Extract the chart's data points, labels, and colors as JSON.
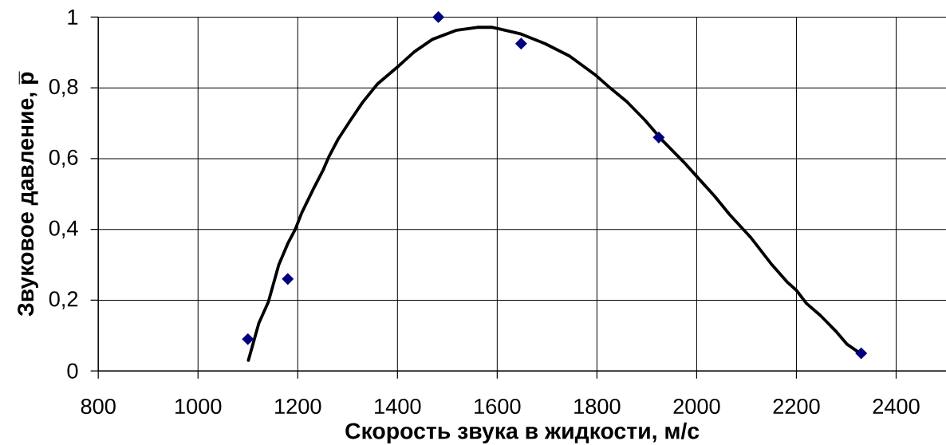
{
  "chart_data": {
    "type": "scatter",
    "xlabel": "Скорость звука в жидкости, м/с",
    "ylabel": "Звуковое давление, p̅",
    "xlim": [
      800,
      2500
    ],
    "xticks": [
      800,
      1000,
      1200,
      1400,
      1600,
      1800,
      2000,
      2200,
      2400
    ],
    "ylim": [
      0,
      1
    ],
    "yticks": [
      0,
      {
        "value": 0.2,
        "label": "0,2"
      },
      {
        "value": 0.4,
        "label": "0,4"
      },
      {
        "value": 0.6,
        "label": "0,6"
      },
      {
        "value": 0.8,
        "label": "0,8"
      },
      1
    ],
    "grid": true,
    "series": [
      {
        "type": "line",
        "color": "#000000",
        "line_style": "solid",
        "x": [
          1101,
          1122,
          1141,
          1162,
          1180,
          1195,
          1208,
          1232,
          1251,
          1263,
          1281,
          1305,
          1330,
          1360,
          1400,
          1434,
          1470,
          1519,
          1560,
          1590,
          1600,
          1648,
          1696,
          1745,
          1799,
          1823,
          1860,
          1896,
          1933,
          1975,
          2000,
          2036,
          2066,
          2108,
          2151,
          2181,
          2200,
          2220,
          2248,
          2278,
          2302,
          2331
        ],
        "values": [
          0.03,
          0.135,
          0.195,
          0.3,
          0.36,
          0.4,
          0.447,
          0.516,
          0.568,
          0.607,
          0.655,
          0.707,
          0.759,
          0.811,
          0.859,
          0.902,
          0.937,
          0.963,
          0.971,
          0.971,
          0.968,
          0.952,
          0.925,
          0.89,
          0.834,
          0.804,
          0.761,
          0.709,
          0.649,
          0.589,
          0.55,
          0.494,
          0.442,
          0.378,
          0.3,
          0.252,
          0.228,
          0.191,
          0.157,
          0.114,
          0.075,
          0.047
        ]
      },
      {
        "color": "#000080",
        "marker": "diamond",
        "x": [
          1100,
          1180,
          1482,
          1648,
          1924,
          2330
        ],
        "values": [
          0.09,
          0.26,
          1.0,
          0.925,
          0.66,
          0.05
        ]
      }
    ]
  }
}
